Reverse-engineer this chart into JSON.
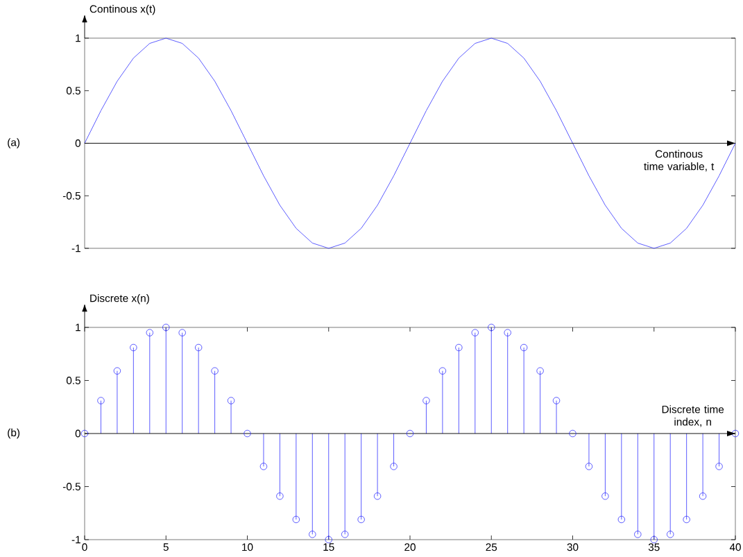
{
  "chart_data": [
    {
      "type": "line",
      "ylabel": "Continous x(t)",
      "xlabel": "Continous time variable, t",
      "annotations": [
        "(a)"
      ],
      "x": [
        0,
        1,
        2,
        3,
        4,
        5,
        6,
        7,
        8,
        9,
        10,
        11,
        12,
        13,
        14,
        15,
        16,
        17,
        18,
        19,
        20,
        21,
        22,
        23,
        24,
        25,
        26,
        27,
        28,
        29,
        30,
        31,
        32,
        33,
        34,
        35,
        36,
        37,
        38,
        39,
        40
      ],
      "values": [
        0,
        0.31,
        0.59,
        0.81,
        0.95,
        1,
        0.95,
        0.81,
        0.59,
        0.31,
        0,
        -0.31,
        -0.59,
        -0.81,
        -0.95,
        -1,
        -0.95,
        -0.81,
        -0.59,
        -0.31,
        0,
        0.31,
        0.59,
        0.81,
        0.95,
        1,
        0.95,
        0.81,
        0.59,
        0.31,
        0,
        -0.31,
        -0.59,
        -0.81,
        -0.95,
        -1,
        -0.95,
        -0.81,
        -0.59,
        -0.31,
        0
      ],
      "color": "#3333ff",
      "xlim": [
        0,
        40
      ],
      "ylim": [
        -1,
        1
      ],
      "yticks": [
        -1,
        -0.5,
        0,
        0.5,
        1
      ],
      "tick_labels": "y",
      "ref_lines": [
        {
          "axis": "y",
          "value": 0
        }
      ]
    },
    {
      "type": "lollipop",
      "ylabel": "Discrete x(n)",
      "xlabel": "Discrete time index, n",
      "annotations": [
        "(b)"
      ],
      "x": [
        0,
        1,
        2,
        3,
        4,
        5,
        6,
        7,
        8,
        9,
        10,
        11,
        12,
        13,
        14,
        15,
        16,
        17,
        18,
        19,
        20,
        21,
        22,
        23,
        24,
        25,
        26,
        27,
        28,
        29,
        30,
        31,
        32,
        33,
        34,
        35,
        36,
        37,
        38,
        39,
        40
      ],
      "values": [
        0,
        0.31,
        0.59,
        0.81,
        0.95,
        1,
        0.95,
        0.81,
        0.59,
        0.31,
        0,
        -0.31,
        -0.59,
        -0.81,
        -0.95,
        -1,
        -0.95,
        -0.81,
        -0.59,
        -0.31,
        0,
        0.31,
        0.59,
        0.81,
        0.95,
        1,
        0.95,
        0.81,
        0.59,
        0.31,
        0,
        -0.31,
        -0.59,
        -0.81,
        -0.95,
        -1,
        -0.95,
        -0.81,
        -0.59,
        -0.31,
        0
      ],
      "color": "#3333ff",
      "marker": "circle",
      "xlim": [
        0,
        40
      ],
      "ylim": [
        -1,
        1
      ],
      "xticks": [
        0,
        5,
        10,
        15,
        20,
        25,
        30,
        35,
        40
      ],
      "yticks": [
        -1,
        -0.5,
        0,
        0.5,
        1
      ],
      "ref_lines": [
        {
          "axis": "y",
          "value": 0
        }
      ]
    }
  ]
}
